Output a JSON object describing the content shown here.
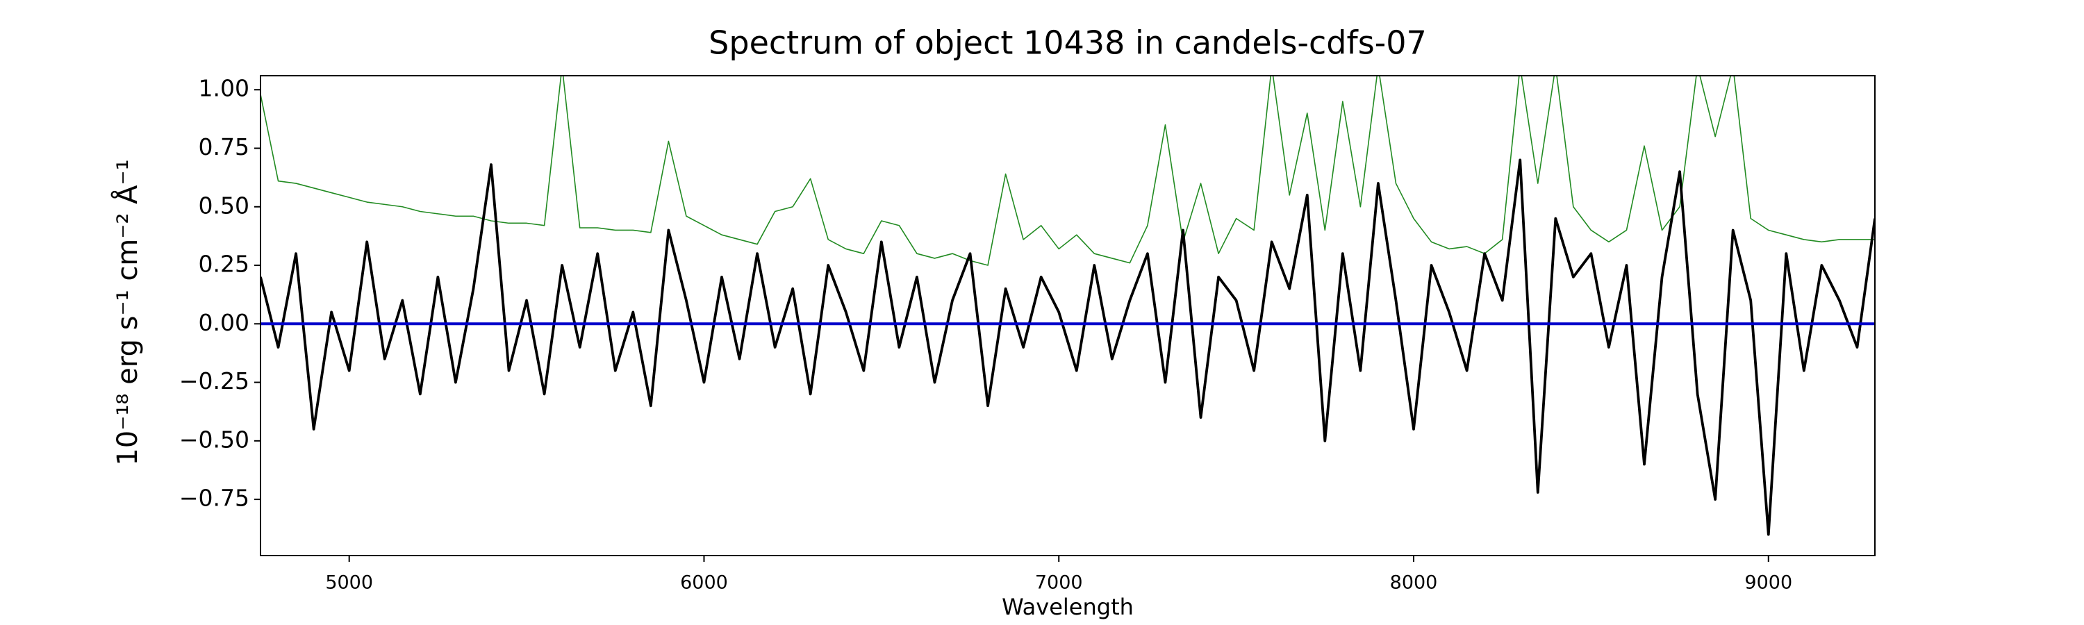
{
  "chart_data": {
    "type": "line",
    "title": "Spectrum of object 10438 in candels-cdfs-07",
    "x_label": "Wavelength",
    "y_label": "10⁻¹⁸ erg s⁻¹ cm⁻² Å⁻¹",
    "x": [
      4750,
      4800,
      4850,
      4900,
      4950,
      5000,
      5050,
      5100,
      5150,
      5200,
      5250,
      5300,
      5350,
      5400,
      5450,
      5500,
      5550,
      5600,
      5650,
      5700,
      5750,
      5800,
      5850,
      5900,
      5950,
      6000,
      6050,
      6100,
      6150,
      6200,
      6250,
      6300,
      6350,
      6400,
      6450,
      6500,
      6550,
      6600,
      6650,
      6700,
      6750,
      6800,
      6850,
      6900,
      6950,
      7000,
      7050,
      7100,
      7150,
      7200,
      7250,
      7300,
      7350,
      7400,
      7450,
      7500,
      7550,
      7600,
      7650,
      7700,
      7750,
      7800,
      7850,
      7900,
      7950,
      8000,
      8050,
      8100,
      8150,
      8200,
      8250,
      8300,
      8350,
      8400,
      8450,
      8500,
      8550,
      8600,
      8650,
      8700,
      8750,
      8800,
      8850,
      8900,
      8950,
      9000,
      9050,
      9100,
      9150,
      9200,
      9250,
      9300
    ],
    "series": [
      {
        "color": "#228b22",
        "values": [
          0.98,
          0.61,
          0.6,
          0.58,
          0.56,
          0.54,
          0.52,
          0.51,
          0.5,
          0.48,
          0.47,
          0.46,
          0.46,
          0.44,
          0.43,
          0.43,
          0.42,
          1.1,
          0.41,
          0.41,
          0.4,
          0.4,
          0.39,
          0.78,
          0.46,
          0.42,
          0.38,
          0.36,
          0.34,
          0.48,
          0.5,
          0.62,
          0.36,
          0.32,
          0.3,
          0.44,
          0.42,
          0.3,
          0.28,
          0.3,
          0.27,
          0.25,
          0.64,
          0.36,
          0.42,
          0.32,
          0.38,
          0.3,
          0.28,
          0.26,
          0.42,
          0.85,
          0.35,
          0.6,
          0.3,
          0.45,
          0.4,
          1.1,
          0.55,
          0.9,
          0.4,
          0.95,
          0.5,
          1.1,
          0.6,
          0.45,
          0.35,
          0.32,
          0.33,
          0.3,
          0.36,
          1.1,
          0.6,
          1.1,
          0.5,
          0.4,
          0.35,
          0.4,
          0.76,
          0.4,
          0.5,
          1.1,
          0.8,
          1.1,
          0.45,
          0.4,
          0.38,
          0.36,
          0.35,
          0.36,
          0.36,
          0.36
        ]
      },
      {
        "color": "#000000",
        "values": [
          0.2,
          -0.1,
          0.3,
          -0.45,
          0.05,
          -0.2,
          0.35,
          -0.15,
          0.1,
          -0.3,
          0.2,
          -0.25,
          0.15,
          0.68,
          -0.2,
          0.1,
          -0.3,
          0.25,
          -0.1,
          0.3,
          -0.2,
          0.05,
          -0.35,
          0.4,
          0.1,
          -0.25,
          0.2,
          -0.15,
          0.3,
          -0.1,
          0.15,
          -0.3,
          0.25,
          0.05,
          -0.2,
          0.35,
          -0.1,
          0.2,
          -0.25,
          0.1,
          0.3,
          -0.35,
          0.15,
          -0.1,
          0.2,
          0.05,
          -0.2,
          0.25,
          -0.15,
          0.1,
          0.3,
          -0.25,
          0.4,
          -0.4,
          0.2,
          0.1,
          -0.2,
          0.35,
          0.15,
          0.55,
          -0.5,
          0.3,
          -0.2,
          0.6,
          0.1,
          -0.45,
          0.25,
          0.05,
          -0.2,
          0.3,
          0.1,
          0.7,
          -0.72,
          0.45,
          0.2,
          0.3,
          -0.1,
          0.25,
          -0.6,
          0.2,
          0.65,
          -0.3,
          -0.75,
          0.4,
          0.1,
          -0.9,
          0.3,
          -0.2,
          0.25,
          0.1,
          -0.1,
          0.45
        ]
      }
    ],
    "zero_line": {
      "value": 0,
      "color": "#0000cc"
    },
    "xlim": [
      4750,
      9300
    ],
    "ylim": [
      -0.99,
      1.06
    ],
    "xticks": [
      5000,
      6000,
      7000,
      8000,
      9000
    ],
    "yticks": [
      {
        "value": -0.75,
        "label": "−0.75"
      },
      {
        "value": -0.5,
        "label": "−0.50"
      },
      {
        "value": -0.25,
        "label": "−0.25"
      },
      {
        "value": 0,
        "label": "0.00"
      },
      {
        "value": 0.25,
        "label": "0.25"
      },
      {
        "value": 0.5,
        "label": "0.50"
      },
      {
        "value": 0.75,
        "label": "0.75"
      },
      {
        "value": 1,
        "label": "1.00"
      }
    ],
    "grid": false
  }
}
